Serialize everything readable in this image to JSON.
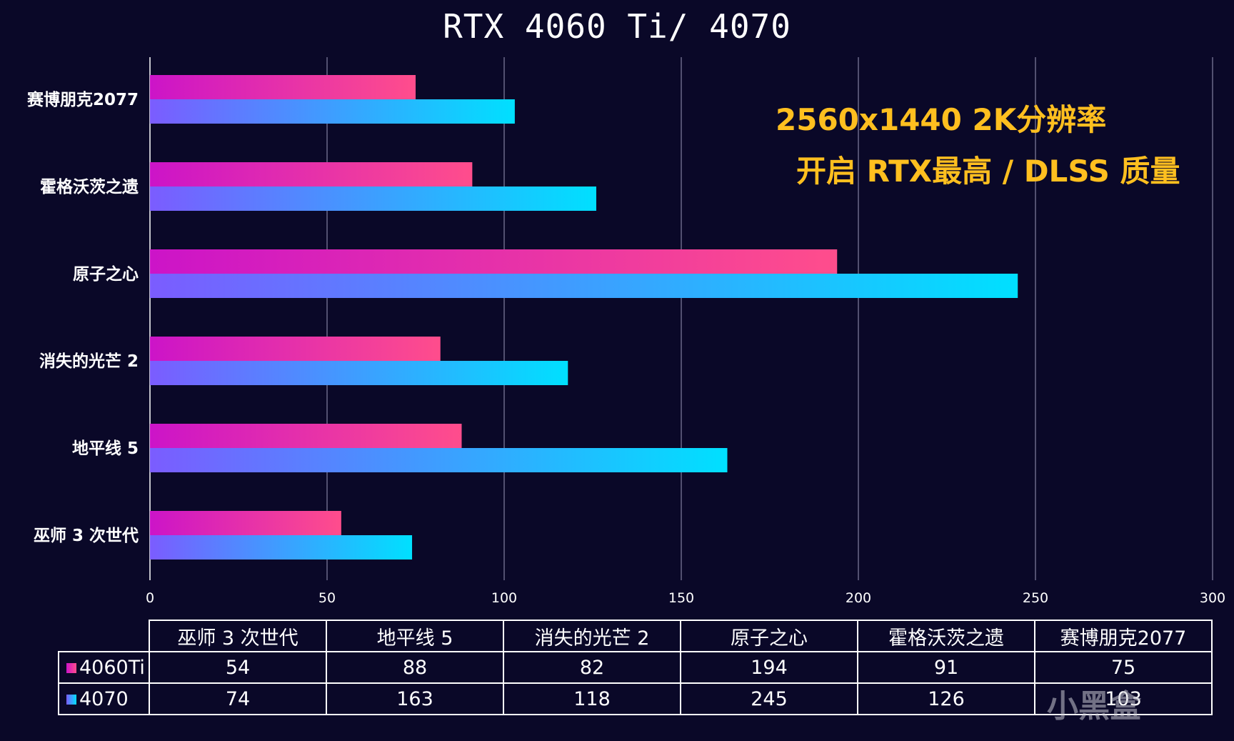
{
  "chart_data": {
    "type": "bar",
    "orientation": "horizontal",
    "title": "RTX 4060 Ti/ 4070",
    "categories": [
      "巫师 3 次世代",
      "地平线 5",
      "消失的光芒 2",
      "原子之心",
      "霍格沃茨之遗",
      "赛博朋克2077"
    ],
    "series": [
      {
        "name": "4060Ti",
        "values": [
          54,
          88,
          82,
          194,
          91,
          75
        ],
        "color_start": "#cc14c8",
        "color_end": "#ff4d8c"
      },
      {
        "name": "4070",
        "values": [
          74,
          163,
          118,
          245,
          126,
          103
        ],
        "color_start": "#7b5cff",
        "color_end": "#00e0ff"
      }
    ],
    "xlim": [
      0,
      300
    ],
    "xticks": [
      0,
      50,
      100,
      150,
      200,
      250,
      300
    ],
    "grid": true,
    "annotations": [
      "2560x1440 2K分辨率",
      "开启 RTX最高 / DLSS 质量"
    ]
  },
  "watermark": "小黑盒",
  "colors": {
    "background": "#0a0828",
    "annotation": "#ffbf1f",
    "axis": "#ffffff"
  }
}
